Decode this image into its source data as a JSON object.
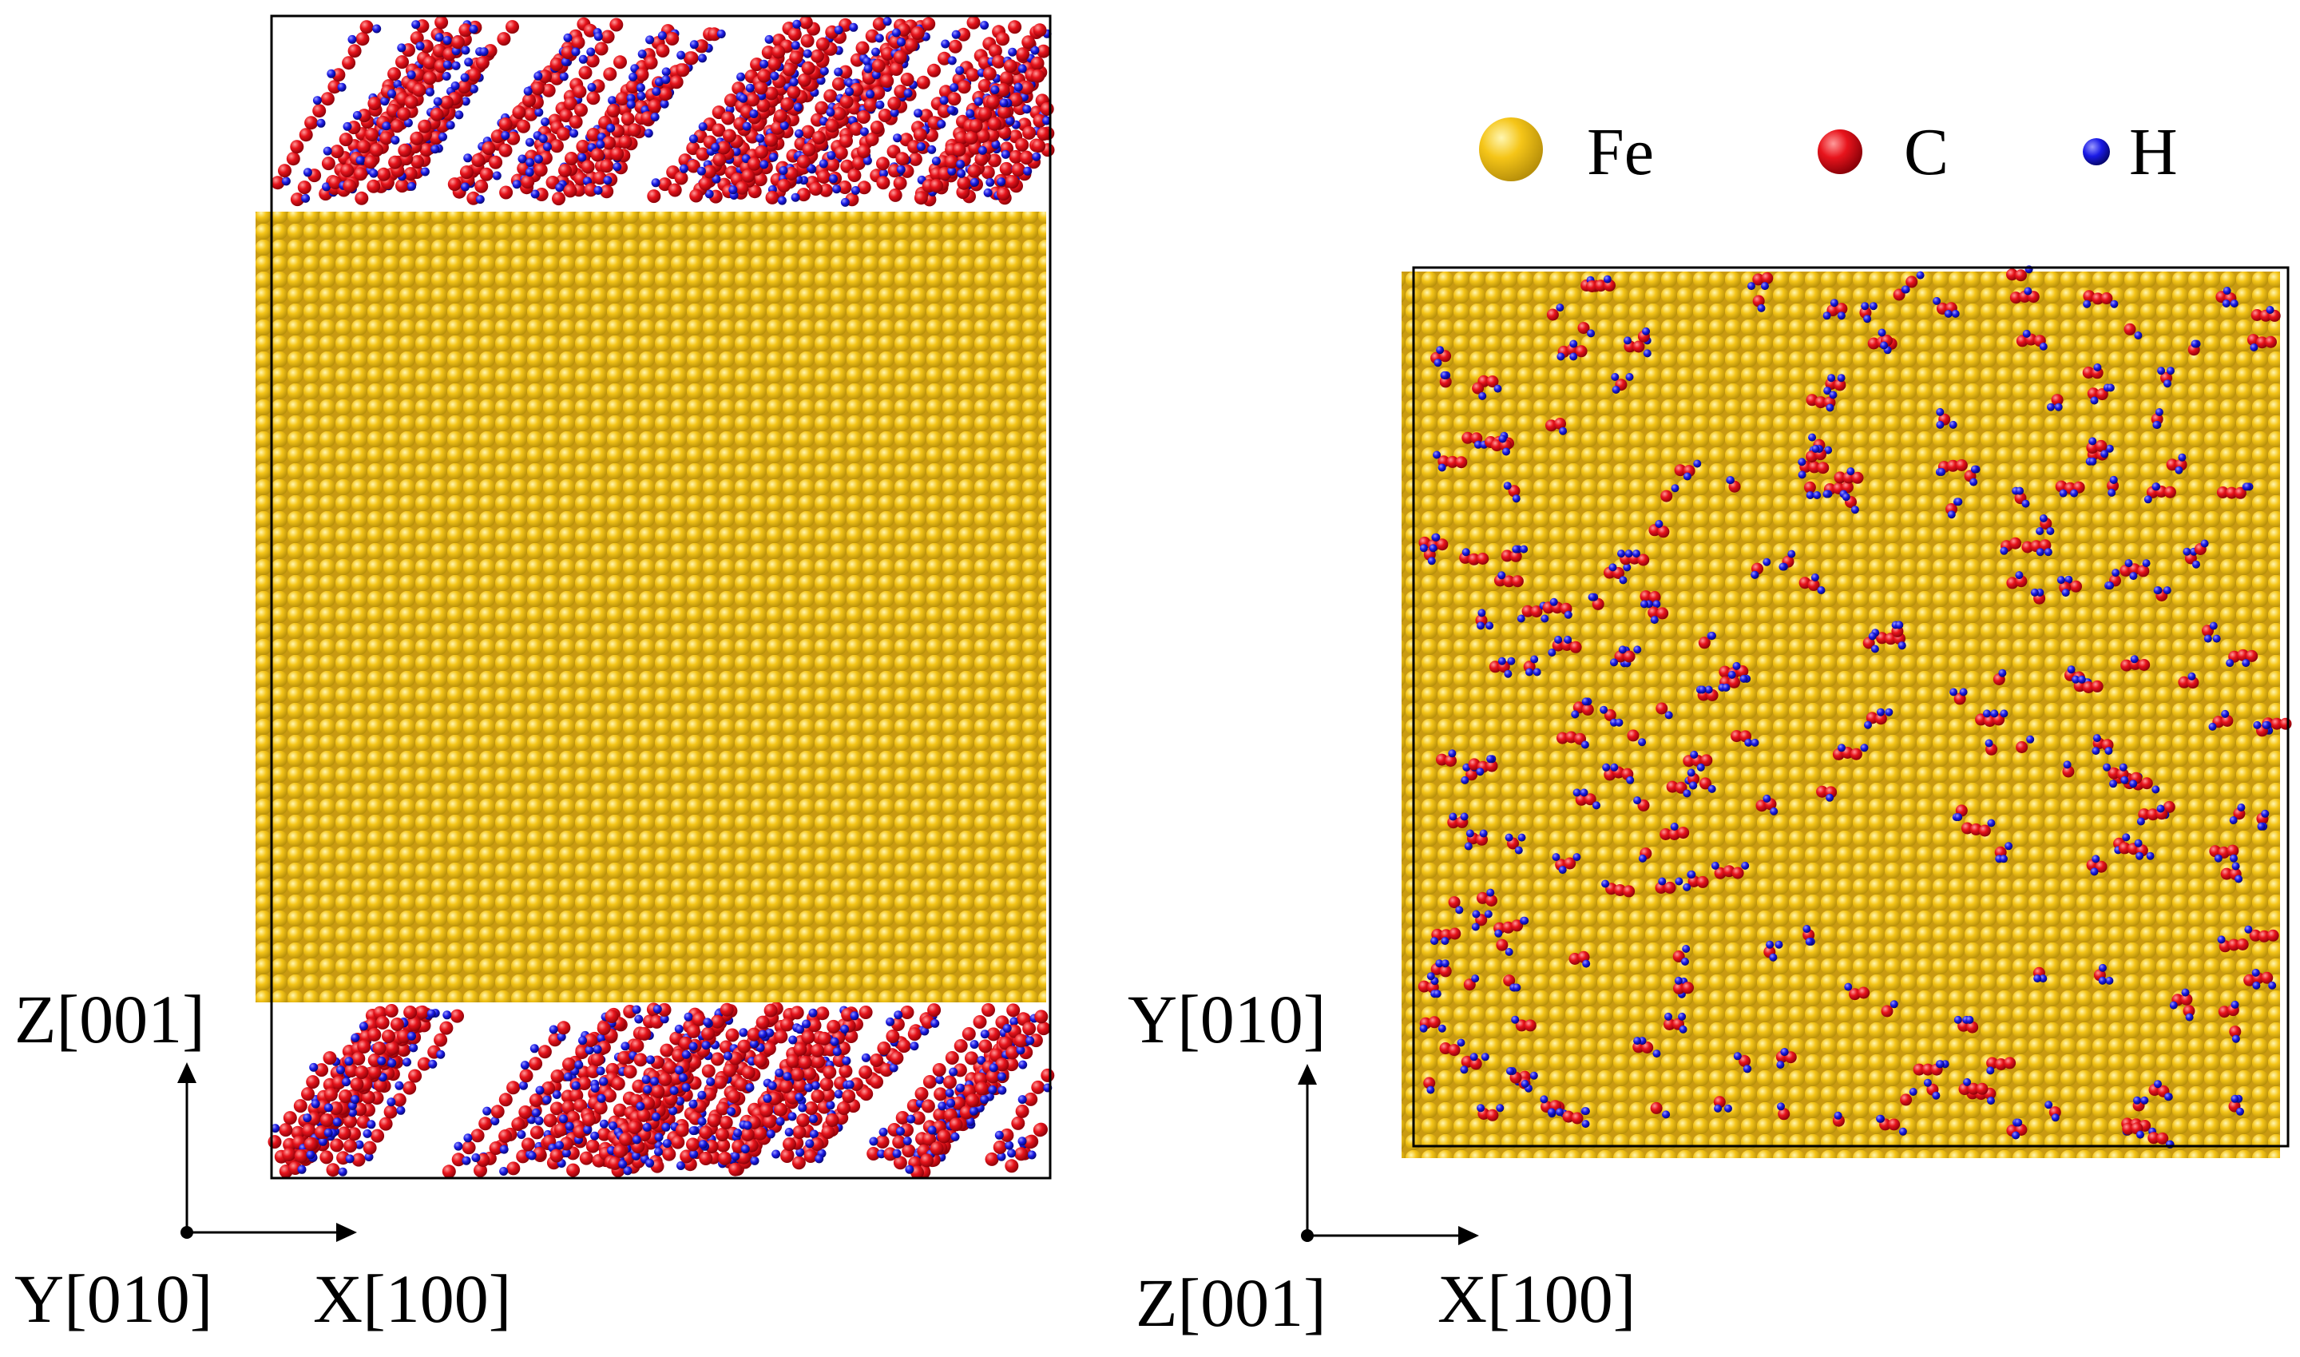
{
  "legend": [
    {
      "symbol": "Fe",
      "color": "#F5C518"
    },
    {
      "symbol": "C",
      "color": "#E8141C"
    },
    {
      "symbol": "H",
      "color": "#1A1AE6"
    }
  ],
  "left_panel": {
    "axis_up_label": "Z[001]",
    "axis_origin_label": "Y[010]",
    "axis_right_label": "X[100]"
  },
  "right_panel": {
    "axis_up_label": "Y[010]",
    "axis_origin_label": "Z[001]",
    "axis_right_label": "X[100]"
  },
  "colors": {
    "fe_fill": "#F5C518",
    "fe_shadow": "#B8900A",
    "c_fill": "#E8141C",
    "h_fill": "#1A1AE6",
    "frame": "#000000"
  }
}
